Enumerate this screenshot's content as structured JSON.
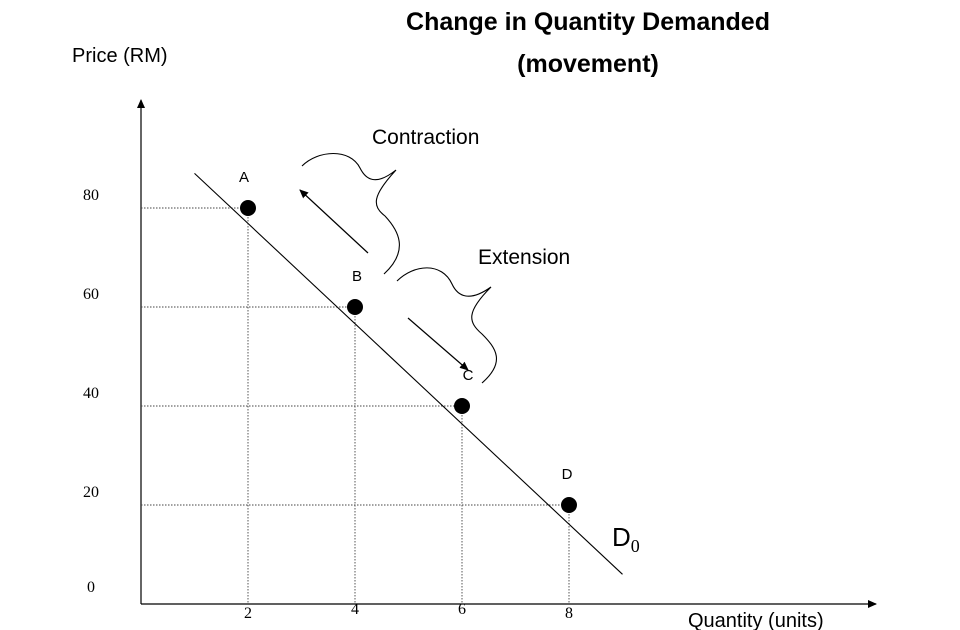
{
  "chart_data": {
    "type": "line",
    "title_line1": "Change in Quantity Demanded",
    "title_line2": "(movement)",
    "ylabel": "Price (RM)",
    "xlabel": "Quantity (units)",
    "x_ticks": [
      "2",
      "4",
      "6",
      "8"
    ],
    "y_ticks": [
      "0",
      "20",
      "40",
      "60",
      "80"
    ],
    "xlim": [
      0,
      13.6
    ],
    "ylim": [
      0,
      100
    ],
    "curve": {
      "label": "D",
      "label_sub": "0",
      "x_range": [
        1,
        9
      ],
      "y_range": [
        87,
        6
      ]
    },
    "points": [
      {
        "label": "A",
        "x": 2,
        "y": 80
      },
      {
        "label": "B",
        "x": 4,
        "y": 60
      },
      {
        "label": "C",
        "x": 6,
        "y": 40
      },
      {
        "label": "D",
        "x": 8,
        "y": 20
      }
    ],
    "annotations": {
      "contraction": "Contraction",
      "extension": "Extension"
    }
  }
}
